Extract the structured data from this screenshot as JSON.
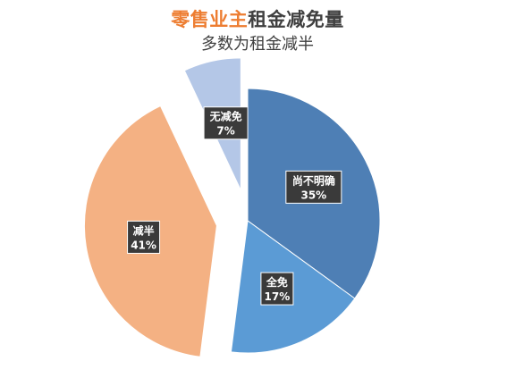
{
  "title": {
    "highlight": "零售业主",
    "rest": "租金减免量"
  },
  "subtitle": "多数为租金减半",
  "chart_data": {
    "type": "pie",
    "title": "零售业主租金减免量",
    "subtitle": "多数为租金减半",
    "start_angle_deg": 0,
    "direction": "clockwise",
    "slices": [
      {
        "label": "尚不明确",
        "value": 35,
        "value_label": "35%",
        "color": "#4e7fb5",
        "exploded": false
      },
      {
        "label": "全免",
        "value": 17,
        "value_label": "17%",
        "color": "#5b9bd5",
        "exploded": false
      },
      {
        "label": "减半",
        "value": 41,
        "value_label": "41%",
        "color": "#f4b183",
        "exploded": true
      },
      {
        "label": "无减免",
        "value": 7,
        "value_label": "7%",
        "color": "#b4c7e7",
        "exploded": true
      }
    ]
  }
}
